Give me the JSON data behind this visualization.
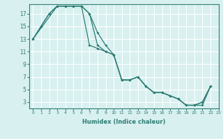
{
  "xlabel": "Humidex (Indice chaleur)",
  "xlim": [
    -0.5,
    23
  ],
  "ylim": [
    2,
    18.5
  ],
  "yticks": [
    3,
    5,
    7,
    9,
    11,
    13,
    15,
    17
  ],
  "xticks": [
    0,
    1,
    2,
    3,
    4,
    5,
    6,
    7,
    8,
    9,
    10,
    11,
    12,
    13,
    14,
    15,
    16,
    17,
    18,
    19,
    20,
    21,
    22,
    23
  ],
  "line_color": "#2d7d74",
  "bg_color": "#d8f0f0",
  "grid_color": "#ffffff",
  "line1_x": [
    0,
    1,
    2,
    3,
    4,
    5,
    6,
    7,
    8,
    9,
    10,
    11,
    12,
    13,
    14,
    15,
    16,
    17,
    18,
    19,
    20,
    21,
    22
  ],
  "line1_y": [
    13,
    15,
    17,
    18.2,
    18.2,
    18.2,
    18.2,
    17,
    14,
    12,
    10.5,
    6.5,
    6.5,
    7,
    5.5,
    4.5,
    4.5,
    4,
    3.5,
    2.5,
    2.5,
    3,
    5.5
  ],
  "line2_x": [
    0,
    3,
    4,
    5,
    6,
    7,
    8,
    9,
    10,
    11,
    12,
    13,
    14,
    15,
    16,
    17,
    18,
    19,
    20,
    21,
    22
  ],
  "line2_y": [
    13,
    18.2,
    18.2,
    18.2,
    18.2,
    12,
    11.5,
    11,
    10.5,
    6.5,
    6.5,
    7,
    5.5,
    4.5,
    4.5,
    4,
    3.5,
    2.5,
    2.5,
    2.5,
    5.5
  ],
  "line3_x": [
    0,
    1,
    2,
    3,
    4,
    5,
    6,
    7,
    8,
    9,
    10,
    11,
    12,
    13,
    14,
    15,
    16,
    17,
    18,
    19,
    20,
    21,
    22
  ],
  "line3_y": [
    13,
    15,
    17,
    18.2,
    18.2,
    18.2,
    18.2,
    17,
    12,
    11,
    10.5,
    6.5,
    6.5,
    7,
    5.5,
    4.5,
    4.5,
    4,
    3.5,
    2.5,
    2.5,
    3.0,
    5.5
  ]
}
